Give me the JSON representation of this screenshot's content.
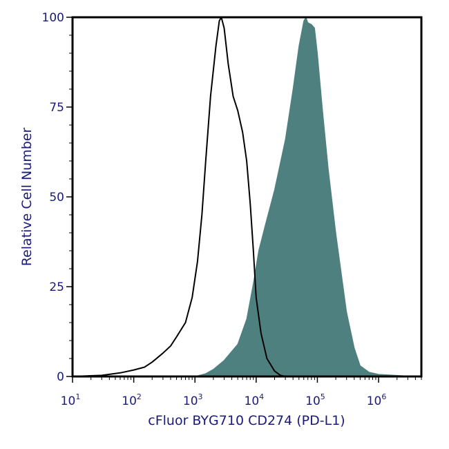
{
  "chart_data": {
    "type": "area",
    "xlabel": "cFluor BYG710 CD274 (PD-L1)",
    "ylabel": "Relative Cell Number",
    "x_scale": "log",
    "xlim": [
      10,
      5000000
    ],
    "ylim": [
      0,
      100
    ],
    "x_ticks": [
      {
        "base": "10",
        "exp": "1",
        "value": 10
      },
      {
        "base": "10",
        "exp": "2",
        "value": 100
      },
      {
        "base": "10",
        "exp": "3",
        "value": 1000
      },
      {
        "base": "10",
        "exp": "4",
        "value": 10000
      },
      {
        "base": "10",
        "exp": "5",
        "value": 100000
      },
      {
        "base": "10",
        "exp": "6",
        "value": 1000000
      }
    ],
    "y_ticks": [
      "0",
      "25",
      "50",
      "75",
      "100"
    ],
    "grid": false,
    "colors": {
      "filled": "#4e8080",
      "outline": "#000000",
      "text": "#1a1a7a"
    },
    "series": [
      {
        "style": "outline",
        "points": [
          [
            10,
            0
          ],
          [
            30,
            0.3
          ],
          [
            60,
            1.0
          ],
          [
            100,
            1.8
          ],
          [
            150,
            2.6
          ],
          [
            200,
            4.0
          ],
          [
            300,
            6.5
          ],
          [
            400,
            8.5
          ],
          [
            500,
            11
          ],
          [
            700,
            15
          ],
          [
            900,
            22
          ],
          [
            1100,
            32
          ],
          [
            1300,
            45
          ],
          [
            1500,
            60
          ],
          [
            1800,
            78
          ],
          [
            2200,
            92
          ],
          [
            2500,
            99
          ],
          [
            2700,
            100
          ],
          [
            3000,
            97
          ],
          [
            3500,
            87
          ],
          [
            4200,
            78
          ],
          [
            5000,
            74
          ],
          [
            6000,
            68
          ],
          [
            7000,
            60
          ],
          [
            8000,
            48
          ],
          [
            9000,
            35
          ],
          [
            10000,
            22
          ],
          [
            12000,
            12
          ],
          [
            15000,
            5
          ],
          [
            20000,
            1.5
          ],
          [
            25000,
            0.3
          ],
          [
            30000,
            0
          ]
        ]
      },
      {
        "style": "filled",
        "points": [
          [
            1000,
            0
          ],
          [
            1500,
            0.8
          ],
          [
            2000,
            2
          ],
          [
            3000,
            4.5
          ],
          [
            5000,
            9
          ],
          [
            7000,
            16
          ],
          [
            9000,
            26
          ],
          [
            11000,
            35
          ],
          [
            14000,
            42
          ],
          [
            20000,
            52
          ],
          [
            30000,
            66
          ],
          [
            40000,
            80
          ],
          [
            50000,
            92
          ],
          [
            60000,
            99
          ],
          [
            65000,
            100
          ],
          [
            70000,
            98.5
          ],
          [
            80000,
            98
          ],
          [
            90000,
            97
          ],
          [
            100000,
            90
          ],
          [
            120000,
            75
          ],
          [
            150000,
            58
          ],
          [
            200000,
            40
          ],
          [
            300000,
            18
          ],
          [
            400000,
            8
          ],
          [
            500000,
            3
          ],
          [
            700000,
            1.2
          ],
          [
            1000000,
            0.6
          ],
          [
            2000000,
            0.3
          ],
          [
            4000000,
            0
          ]
        ]
      }
    ]
  }
}
